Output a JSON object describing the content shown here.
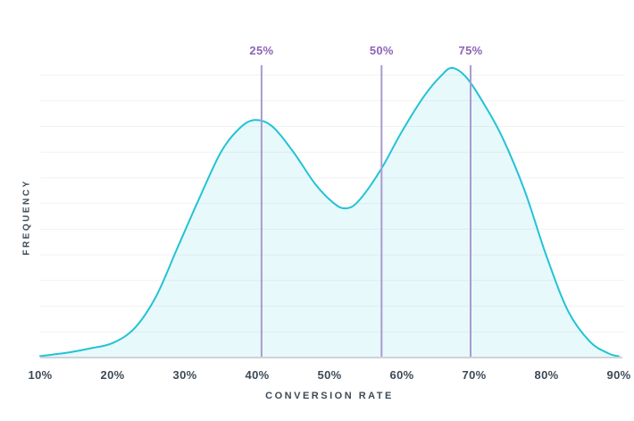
{
  "chart_data": {
    "type": "area",
    "title": "",
    "xlabel": "CONVERSION RATE",
    "ylabel": "FREQUENCY",
    "x_ticks": [
      "10%",
      "20%",
      "30%",
      "40%",
      "50%",
      "60%",
      "70%",
      "80%",
      "90%"
    ],
    "x_tick_values": [
      10,
      20,
      30,
      40,
      50,
      60,
      70,
      80,
      90
    ],
    "x_range": [
      10,
      90
    ],
    "y_range": [
      0,
      1
    ],
    "y_ticks_shown": false,
    "grid": "horizontal",
    "legend": "none",
    "series": [
      {
        "name": "conversion-rate-frequency-density",
        "shape": "bimodal",
        "x": [
          10,
          14,
          17,
          20,
          23,
          26,
          29,
          32,
          35,
          37.5,
          39.6,
          42,
          45,
          48,
          50.5,
          52.2,
          54,
          57,
          60,
          63,
          65.5,
          67,
          69,
          71.5,
          74,
          77,
          80,
          83,
          86,
          88.5,
          90
        ],
        "y": [
          0.005,
          0.018,
          0.032,
          0.05,
          0.1,
          0.21,
          0.38,
          0.55,
          0.71,
          0.79,
          0.82,
          0.8,
          0.71,
          0.6,
          0.535,
          0.515,
          0.54,
          0.645,
          0.78,
          0.9,
          0.975,
          1.0,
          0.965,
          0.87,
          0.755,
          0.575,
          0.35,
          0.16,
          0.055,
          0.015,
          0.004
        ],
        "peaks": [
          {
            "x": 39.6,
            "y": 0.82
          },
          {
            "x": 67,
            "y": 1.0
          }
        ],
        "valley": {
          "x": 52.2,
          "y": 0.515
        }
      }
    ],
    "quartile_markers": [
      {
        "label": "25%",
        "x": 40.6
      },
      {
        "label": "50%",
        "x": 57.2
      },
      {
        "label": "75%",
        "x": 69.5
      }
    ],
    "colors": {
      "curve": "#22c3d5",
      "area_fill": "rgba(34,195,213,0.10)",
      "marker_line": "#a99bd1",
      "marker_text": "#8c64b6",
      "axis_text": "#3d4a57",
      "gridline": "#f2f2f4",
      "baseline": "#ced3d7"
    }
  }
}
